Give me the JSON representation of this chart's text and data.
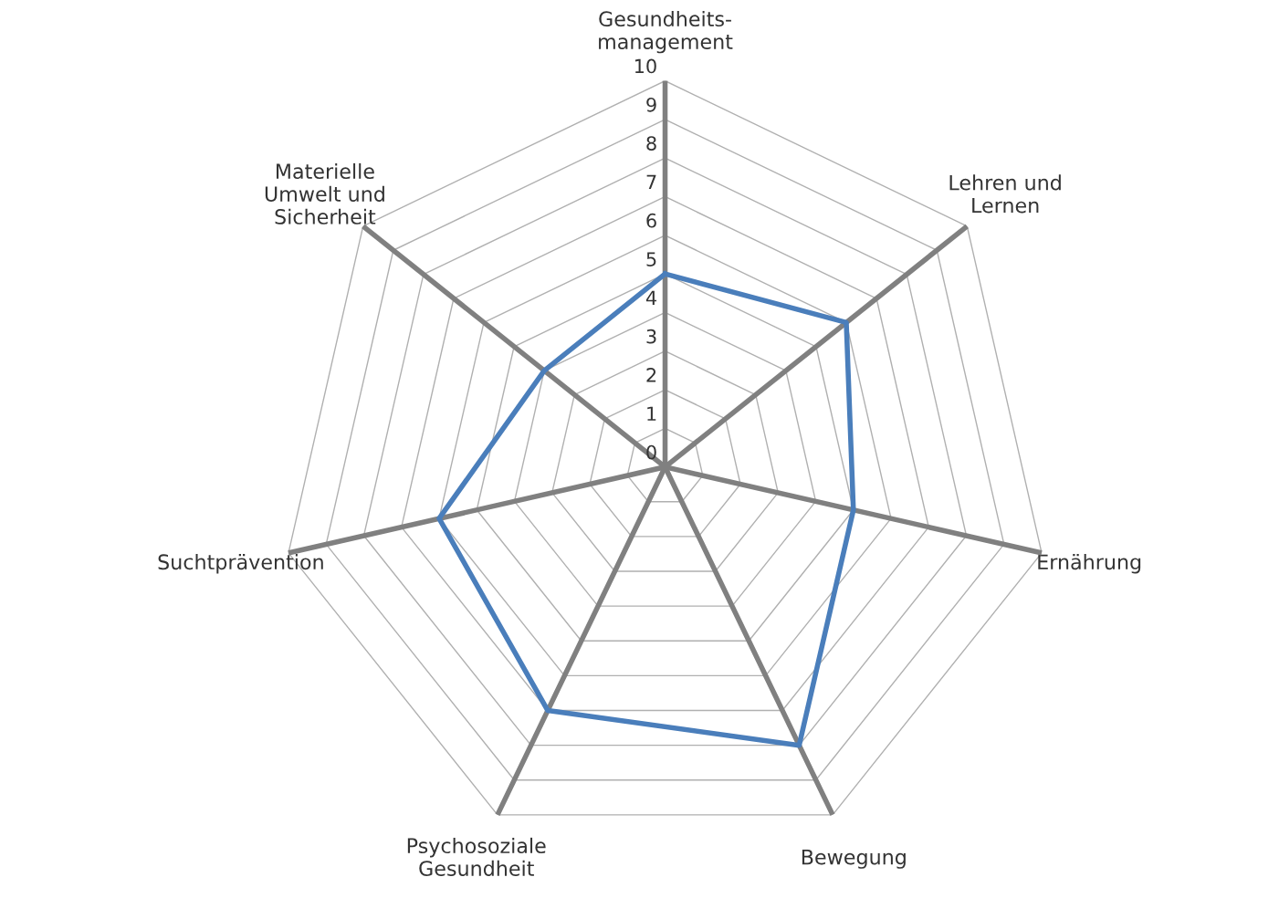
{
  "chart_data": {
    "type": "radar",
    "categories": [
      "Gesundheits-\nmanagement",
      "Lehren und\nLernen",
      "Ernährung",
      "Bewegung",
      "Psychosoziale\nGesundheit",
      "Suchtprävention",
      "Materielle\nUmwelt und\nSicherheit"
    ],
    "series": [
      {
        "color": "#4a7ebb",
        "values": [
          5,
          6,
          5,
          8,
          7,
          6,
          4
        ]
      }
    ],
    "ylim": [
      0,
      10
    ],
    "yticks": [
      0,
      1,
      2,
      3,
      4,
      5,
      6,
      7,
      8,
      9,
      10
    ],
    "grid": true,
    "marker": "none",
    "line_style": "solid"
  }
}
